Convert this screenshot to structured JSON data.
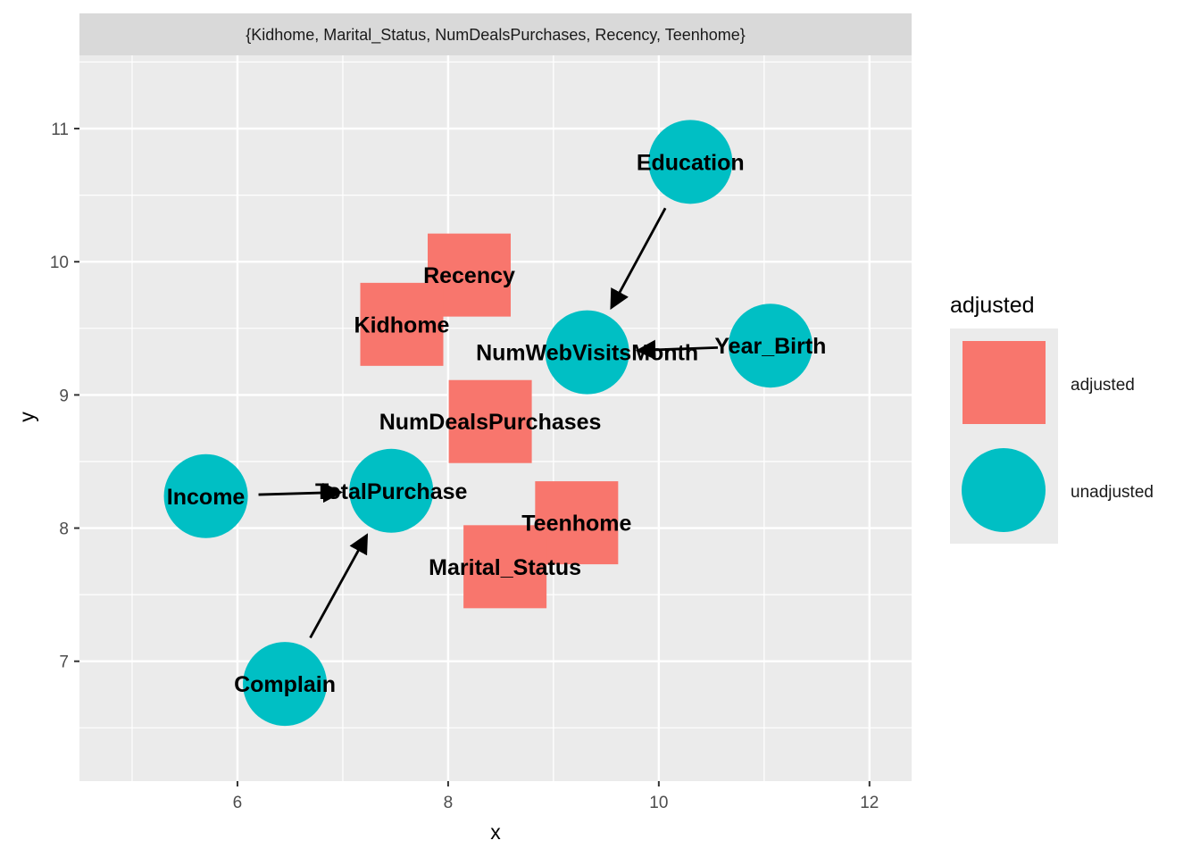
{
  "chart_data": {
    "type": "scatter",
    "facet_label": "{Kidhome, Marital_Status, NumDealsPurchases, Recency, Teenhome}",
    "xlabel": "x",
    "ylabel": "y",
    "xlim": [
      4.5,
      12.4
    ],
    "ylim": [
      6.1,
      11.55
    ],
    "x_ticks": [
      6,
      8,
      10,
      12
    ],
    "y_ticks": [
      7,
      8,
      9,
      10,
      11
    ],
    "x_tick_labels": [
      "6",
      "8",
      "10",
      "12"
    ],
    "y_tick_labels": [
      "7",
      "8",
      "9",
      "10",
      "11"
    ],
    "grid": true,
    "nodes": [
      {
        "name": "Education",
        "x": 10.3,
        "y": 10.75,
        "adjusted": "unadjusted"
      },
      {
        "name": "Recency",
        "x": 8.2,
        "y": 9.9,
        "adjusted": "adjusted"
      },
      {
        "name": "Kidhome",
        "x": 7.56,
        "y": 9.53,
        "adjusted": "adjusted"
      },
      {
        "name": "NumWebVisitsMonth",
        "x": 9.32,
        "y": 9.32,
        "adjusted": "unadjusted"
      },
      {
        "name": "Year_Birth",
        "x": 11.06,
        "y": 9.37,
        "adjusted": "unadjusted"
      },
      {
        "name": "NumDealsPurchases",
        "x": 8.4,
        "y": 8.8,
        "adjusted": "adjusted"
      },
      {
        "name": "Income",
        "x": 5.7,
        "y": 8.24,
        "adjusted": "unadjusted"
      },
      {
        "name": "TotalPurchase",
        "x": 7.46,
        "y": 8.28,
        "adjusted": "unadjusted"
      },
      {
        "name": "Teenhome",
        "x": 9.22,
        "y": 8.04,
        "adjusted": "adjusted"
      },
      {
        "name": "Marital_Status",
        "x": 8.54,
        "y": 7.71,
        "adjusted": "adjusted"
      },
      {
        "name": "Complain",
        "x": 6.45,
        "y": 6.83,
        "adjusted": "unadjusted"
      }
    ],
    "edges": [
      {
        "from": "Education",
        "to": "NumWebVisitsMonth"
      },
      {
        "from": "Year_Birth",
        "to": "NumWebVisitsMonth"
      },
      {
        "from": "Income",
        "to": "TotalPurchase"
      },
      {
        "from": "Complain",
        "to": "TotalPurchase"
      }
    ],
    "legend": {
      "title": "adjusted",
      "position": "right",
      "items": [
        {
          "label": "adjusted",
          "shape": "square",
          "color": "#F8766D"
        },
        {
          "label": "unadjusted",
          "shape": "circle",
          "color": "#00BFC4"
        }
      ]
    },
    "colors": {
      "adjusted": "#F8766D",
      "unadjusted": "#00BFC4",
      "panel_background": "#EBEBEB",
      "grid": "#FFFFFF",
      "strip_background": "#D9D9D9"
    }
  }
}
